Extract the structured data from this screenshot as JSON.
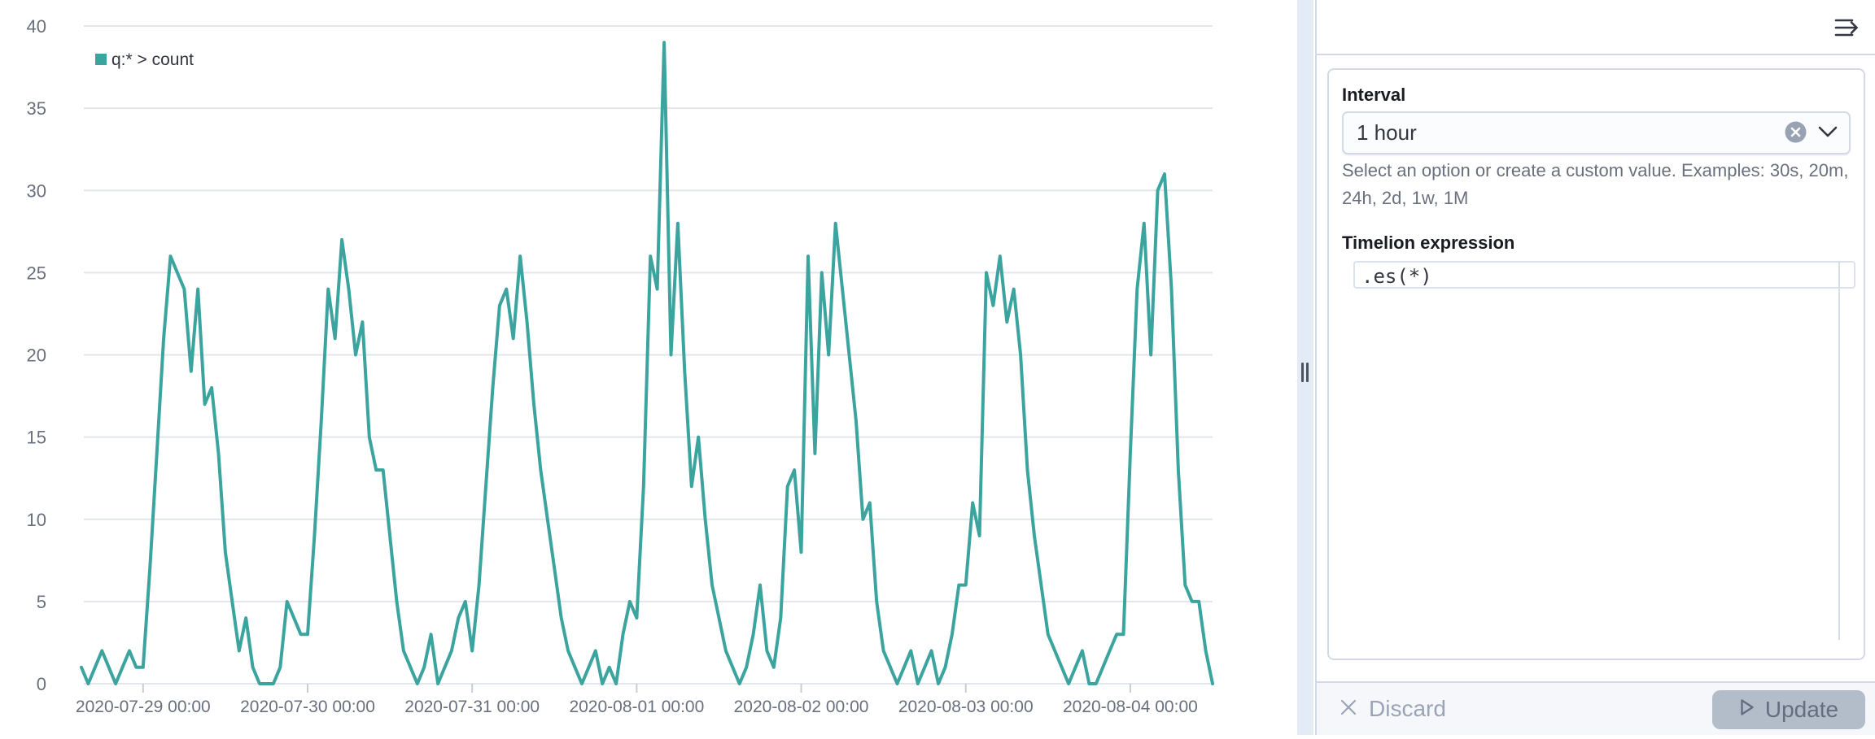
{
  "panel": {
    "toolbar": {
      "collapse_icon": "collapse-panel-arrow-right"
    },
    "interval": {
      "label": "Interval",
      "value": "1 hour",
      "help_line1": "Select an option or create a custom value. Examples: 30s, 20m,",
      "help_line2": "24h, 2d, 1w, 1M",
      "clear_icon": "clear-x-circle",
      "caret_icon": "chevron-down"
    },
    "expression": {
      "label": "Timelion expression",
      "value": ".es(*)"
    },
    "footer": {
      "discard_label": "Discard",
      "update_label": "Update"
    }
  },
  "chart_data": {
    "type": "line",
    "title": "",
    "xlabel": "",
    "ylabel": "",
    "legend_position": "top-left",
    "grid": true,
    "ylim": [
      0,
      40
    ],
    "y_ticks": [
      0,
      5,
      10,
      15,
      20,
      25,
      30,
      35,
      40
    ],
    "x_tick_labels": [
      "2020-07-29 00:00",
      "2020-07-30 00:00",
      "2020-07-31 00:00",
      "2020-08-01 00:00",
      "2020-08-02 00:00",
      "2020-08-03 00:00",
      "2020-08-04 00:00"
    ],
    "series": [
      {
        "name": "q:* > count",
        "color": "#3CA49E",
        "start": "2020-07-28 15:00",
        "interval": "1h",
        "values": [
          1,
          0,
          1,
          2,
          1,
          0,
          1,
          2,
          1,
          1,
          7,
          14,
          21,
          26,
          25,
          24,
          19,
          24,
          17,
          18,
          14,
          8,
          5,
          2,
          4,
          1,
          0,
          0,
          0,
          1,
          5,
          4,
          3,
          3,
          9,
          16,
          24,
          21,
          27,
          24,
          20,
          22,
          15,
          13,
          13,
          9,
          5,
          2,
          1,
          0,
          1,
          3,
          0,
          1,
          2,
          4,
          5,
          2,
          6,
          12,
          18,
          23,
          24,
          21,
          26,
          22,
          17,
          13,
          10,
          7,
          4,
          2,
          1,
          0,
          1,
          2,
          0,
          1,
          0,
          3,
          5,
          4,
          12,
          26,
          24,
          39,
          20,
          28,
          19,
          12,
          15,
          10,
          6,
          4,
          2,
          1,
          0,
          1,
          3,
          6,
          2,
          1,
          4,
          12,
          13,
          8,
          26,
          14,
          25,
          20,
          28,
          24,
          20,
          16,
          10,
          11,
          5,
          2,
          1,
          0,
          1,
          2,
          0,
          1,
          2,
          0,
          1,
          3,
          6,
          6,
          11,
          9,
          25,
          23,
          26,
          22,
          24,
          20,
          13,
          9,
          6,
          3,
          2,
          1,
          0,
          1,
          2,
          0,
          0,
          1,
          2,
          3,
          3,
          14,
          24,
          28,
          20,
          30,
          31,
          24,
          13,
          6,
          5,
          5,
          2,
          0
        ]
      }
    ]
  },
  "colors": {
    "series_teal": "#3CA49E",
    "gridline": "#E2E5EA",
    "axis_text": "#69707D",
    "legend_text": "#343741",
    "border": "#D3DAE6"
  }
}
